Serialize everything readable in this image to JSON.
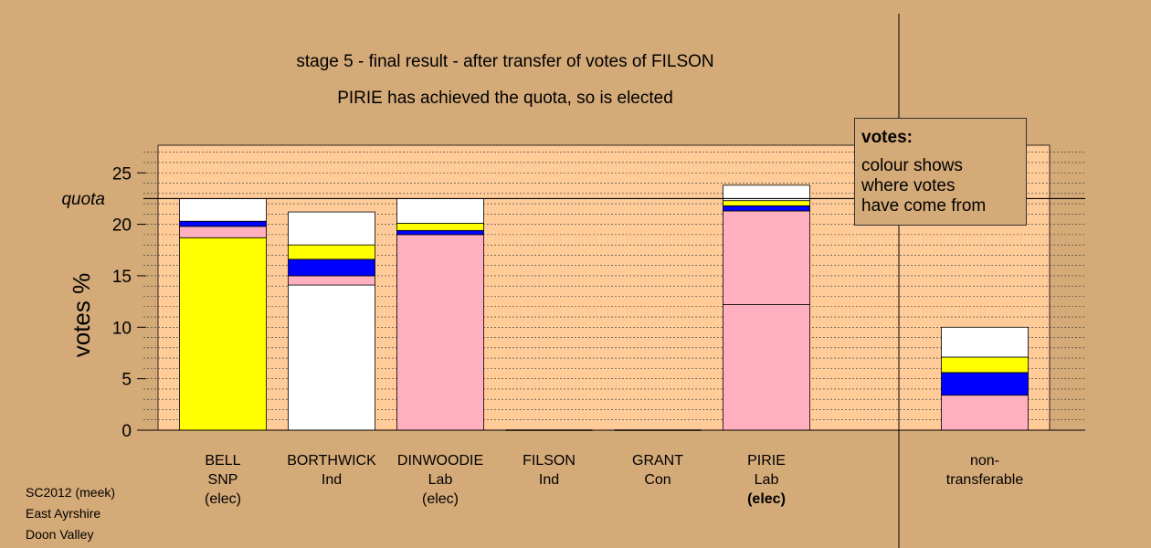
{
  "chart_data": {
    "type": "bar",
    "stacked": true,
    "title": "stage 5 - final result - after transfer of votes of FILSON",
    "subtitle": "PIRIE has achieved the quota, so is elected",
    "ylabel": "votes %",
    "ylim": [
      0,
      27.5
    ],
    "yticks": [
      0,
      5,
      10,
      15,
      20,
      25
    ],
    "quota": 22.5,
    "quota_label": "quota",
    "colors": {
      "SNP": "#ffff00",
      "Lab": "#ffb0c0",
      "Ind": "#ffffff",
      "Con": "#0000ff",
      "plot_bg": "#ffcc99"
    },
    "categories": [
      {
        "name": "BELL",
        "party": "SNP",
        "status": "(elec)",
        "status_bold": false,
        "segments": [
          {
            "color": "#ffff00",
            "value": 18.7
          },
          {
            "color": "#ffb0c0",
            "value": 1.1
          },
          {
            "color": "#0000ff",
            "value": 0.5
          },
          {
            "color": "#ffffff",
            "value": 2.2
          }
        ]
      },
      {
        "name": "BORTHWICK",
        "party": "Ind",
        "status": "",
        "status_bold": false,
        "segments": [
          {
            "color": "#ffffff",
            "value": 14.1
          },
          {
            "color": "#ffb0c0",
            "value": 0.9
          },
          {
            "color": "#0000ff",
            "value": 1.6
          },
          {
            "color": "#ffff00",
            "value": 1.4
          },
          {
            "color": "#ffffff",
            "value": 3.2
          }
        ]
      },
      {
        "name": "DINWOODIE",
        "party": "Lab",
        "status": "(elec)",
        "status_bold": false,
        "segments": [
          {
            "color": "#ffb0c0",
            "value": 19.0
          },
          {
            "color": "#0000ff",
            "value": 0.4
          },
          {
            "color": "#ffff00",
            "value": 0.7
          },
          {
            "color": "#ffffff",
            "value": 2.4
          }
        ]
      },
      {
        "name": "FILSON",
        "party": "Ind",
        "status": "",
        "status_bold": false,
        "segments": []
      },
      {
        "name": "GRANT",
        "party": "Con",
        "status": "",
        "status_bold": false,
        "segments": []
      },
      {
        "name": "PIRIE",
        "party": "Lab",
        "status": "(elec)",
        "status_bold": true,
        "segments": [
          {
            "color": "#ffb0c0",
            "value": 12.2
          },
          {
            "color": "#ffb0c0",
            "value": 9.1
          },
          {
            "color": "#0000ff",
            "value": 0.5
          },
          {
            "color": "#ffff00",
            "value": 0.5
          },
          {
            "color": "#ffffff",
            "value": 1.5
          }
        ]
      },
      {
        "name": "non-",
        "party": "transferable",
        "status": "",
        "status_bold": false,
        "segments": [
          {
            "color": "#ffb0c0",
            "value": 3.4
          },
          {
            "color": "#0000ff",
            "value": 2.2
          },
          {
            "color": "#ffff00",
            "value": 1.5
          },
          {
            "color": "#ffffff",
            "value": 2.9
          }
        ]
      }
    ]
  },
  "legend": {
    "title": "votes:",
    "lines": [
      "colour shows",
      "where votes",
      "have come from"
    ]
  },
  "footer": [
    "SC2012 (meek)",
    "East Ayrshire",
    "Doon Valley"
  ]
}
